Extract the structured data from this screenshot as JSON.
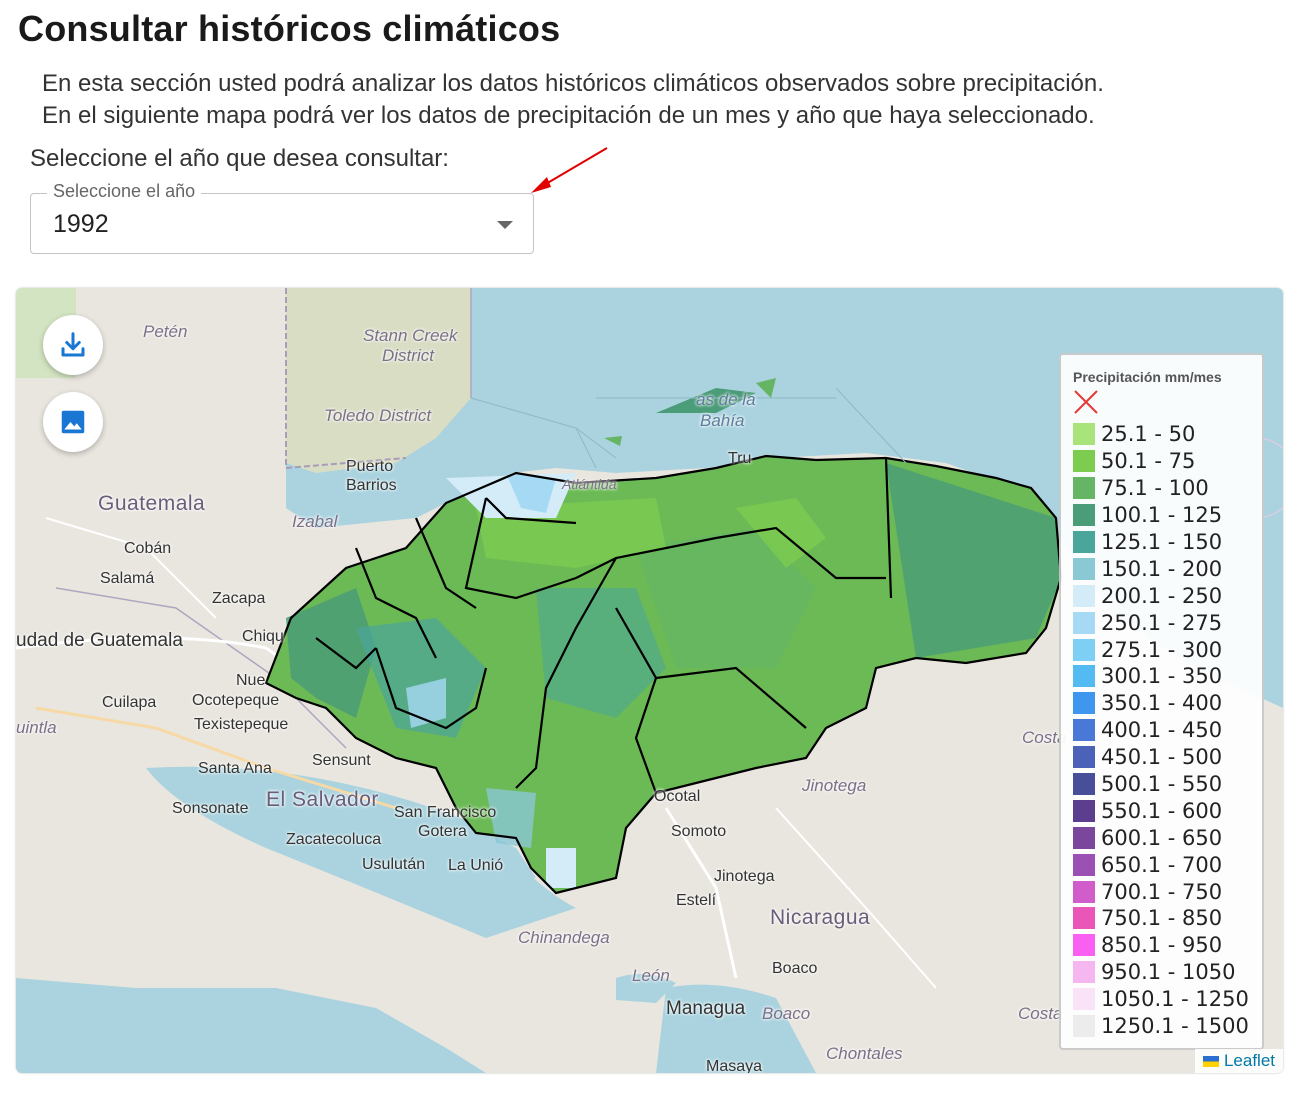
{
  "page": {
    "title": "Consultar históricos climáticos",
    "description_line1": "En esta sección usted podrá analizar los datos históricos climáticos observados sobre precipitación.",
    "description_line2": "En el siguiente mapa podrá ver los datos de precipitación de un mes y año que haya seleccionado."
  },
  "year_select": {
    "prompt": "Seleccione el año que desea consultar:",
    "legend": "Seleccione el año",
    "value": "1992"
  },
  "map": {
    "controls": {
      "download_icon": "download-icon",
      "image_icon": "image-icon"
    },
    "labels": {
      "peten": "Petén",
      "stann_creek": "Stann Creek",
      "district": "District",
      "toledo": "Toledo District",
      "bahia": "as de la",
      "bahia2": "Bahía",
      "puerto": "Puerto",
      "barrios": "Barrios",
      "guatemala": "Guatemala",
      "izabal": "Izabal",
      "coban": "Cobán",
      "salama": "Salamá",
      "zacapa": "Zacapa",
      "ciudad_guatemala": "udad de Guatemala",
      "chiqu": "Chiqu",
      "nue": "Nue",
      "cuilapa": "Cuilapa",
      "ocotepeque": "Ocotepeque",
      "texistepeque": "Texistepeque",
      "uintla": "uintla",
      "santa_ana": "Santa Ana",
      "sensunt": "Sensunt",
      "sonsonate": "Sonsonate",
      "el_salvador": "El Salvador",
      "san_francisco": "San Francisco",
      "gotera": "Gotera",
      "zacatecoluca": "Zacatecoluca",
      "usulutan": "Usulután",
      "la_union": "La Unió",
      "ocotal": "Ocotal",
      "somoto": "Somoto",
      "jinotega": "Jinotega",
      "jinotega2": "Jinotega",
      "esteli": "Estelí",
      "nicaragua": "Nicaragua",
      "chinandega": "Chinandega",
      "leon": "León",
      "boaco": "Boaco",
      "boaco2": "Boaco",
      "managua": "Managua",
      "chontales": "Chontales",
      "masaya": "Masaya",
      "costa1": "Costa",
      "costa2": "Costa",
      "tru": "Tru",
      "atlantida": "Atlántida"
    },
    "legend": {
      "title": "Precipitación mm/mes",
      "no_data_icon": "x-icon",
      "items": [
        {
          "label": "25.1 - 50",
          "color": "#a8e47a"
        },
        {
          "label": "50.1 - 75",
          "color": "#7ccc50"
        },
        {
          "label": "75.1 - 100",
          "color": "#65b565"
        },
        {
          "label": "100.1 - 125",
          "color": "#4b9c78"
        },
        {
          "label": "125.1 - 150",
          "color": "#4aa59b"
        },
        {
          "label": "150.1 - 200",
          "color": "#8ac8d4"
        },
        {
          "label": "200.1 - 250",
          "color": "#d3ecf8"
        },
        {
          "label": "250.1 - 275",
          "color": "#a6daf4"
        },
        {
          "label": "275.1 - 300",
          "color": "#7dd0f3"
        },
        {
          "label": "300.1 - 350",
          "color": "#53baf2"
        },
        {
          "label": "350.1 - 400",
          "color": "#3f96ee"
        },
        {
          "label": "400.1 - 450",
          "color": "#4a78d6"
        },
        {
          "label": "450.1 - 500",
          "color": "#4b62b8"
        },
        {
          "label": "500.1 - 550",
          "color": "#474f98"
        },
        {
          "label": "550.1 - 600",
          "color": "#5b3f8e"
        },
        {
          "label": "600.1 - 650",
          "color": "#7b479c"
        },
        {
          "label": "650.1 - 700",
          "color": "#9b50b3"
        },
        {
          "label": "700.1 - 750",
          "color": "#d15dcb"
        },
        {
          "label": "750.1 - 850",
          "color": "#ea55b8"
        },
        {
          "label": "850.1 - 950",
          "color": "#f95ff0"
        },
        {
          "label": "950.1 - 1050",
          "color": "#f6b7f0"
        },
        {
          "label": "1050.1 - 1250",
          "color": "#fae2f7"
        },
        {
          "label": "1250.1 - 1500",
          "color": "#ececec"
        }
      ]
    },
    "attribution": "Leaflet"
  }
}
